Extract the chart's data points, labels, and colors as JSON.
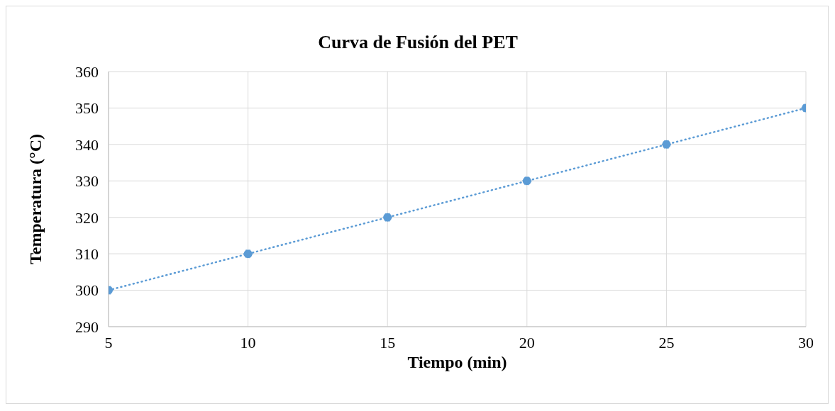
{
  "chart_data": {
    "type": "line",
    "title": "Curva de Fusión del PET",
    "xlabel": "Tiempo (min)",
    "ylabel": "Temperatura  (°C)",
    "x": [
      5,
      10,
      15,
      20,
      25,
      30
    ],
    "series": [
      {
        "color": "#5b9bd5",
        "values": [
          300,
          310,
          320,
          330,
          340,
          350
        ]
      }
    ],
    "xlim": [
      5,
      30
    ],
    "xticks": [
      5,
      10,
      15,
      20,
      25,
      30
    ],
    "ylim": [
      290,
      360
    ],
    "yticks": [
      290,
      300,
      310,
      320,
      330,
      340,
      350,
      360
    ],
    "grid": true,
    "legend": false,
    "marker": "circle",
    "line_style": "dotted"
  }
}
